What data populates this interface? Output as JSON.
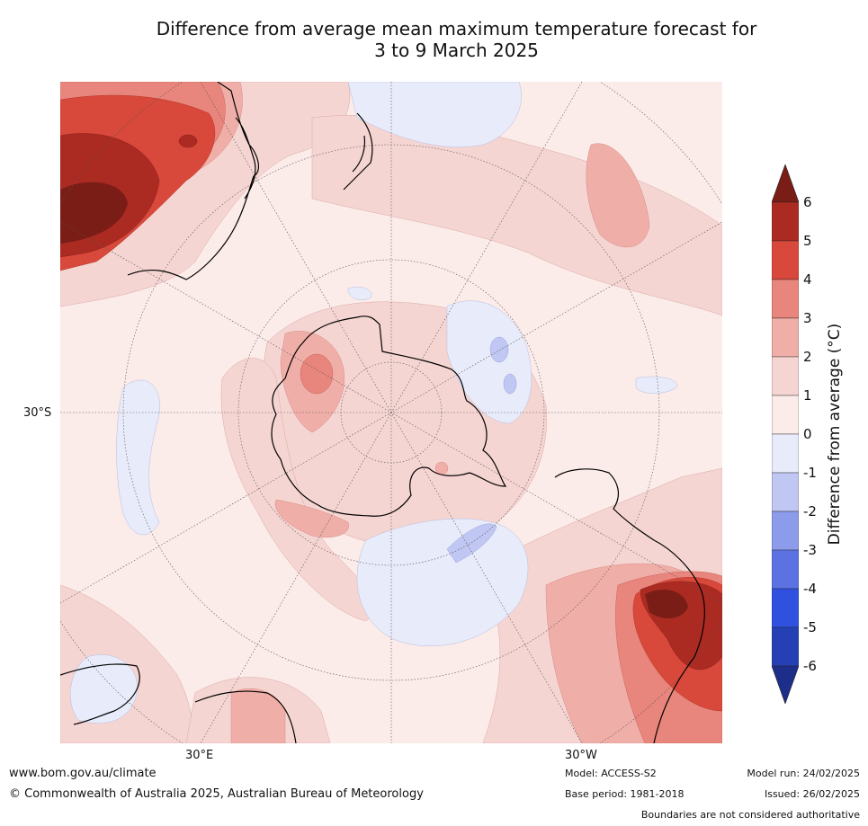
{
  "title_line1": "Difference from average mean maximum temperature forecast for",
  "title_line2": "3 to 9 March 2025",
  "axis_labels": {
    "lat_30s": "30°S",
    "lon_30e": "30°E",
    "lon_30w": "30°W"
  },
  "colorbar": {
    "label": "Difference from average (°C)",
    "ticks": [
      "6",
      "5",
      "4",
      "3",
      "2",
      "1",
      "0",
      "-1",
      "-2",
      "-3",
      "-4",
      "-5",
      "-6"
    ],
    "colors": [
      "#7a1d16",
      "#ab2b22",
      "#d8483b",
      "#e8857c",
      "#f0aea8",
      "#f5d5d2",
      "#fbebe9",
      "#e8ebfa",
      "#c0c7f2",
      "#8d9beb",
      "#5c72e3",
      "#3050e0",
      "#2540b5",
      "#1d2e8a"
    ]
  },
  "footer": {
    "website": "www.bom.gov.au/climate",
    "copyright": "© Commonwealth of Australia 2025, Australian Bureau of Meteorology",
    "model": "Model: ACCESS-S2",
    "base_period": "Base period: 1981-2018",
    "model_run": "Model run: 24/02/2025",
    "issued": "Issued: 26/02/2025",
    "disclaimer": "Boundaries are not considered authoritative"
  }
}
